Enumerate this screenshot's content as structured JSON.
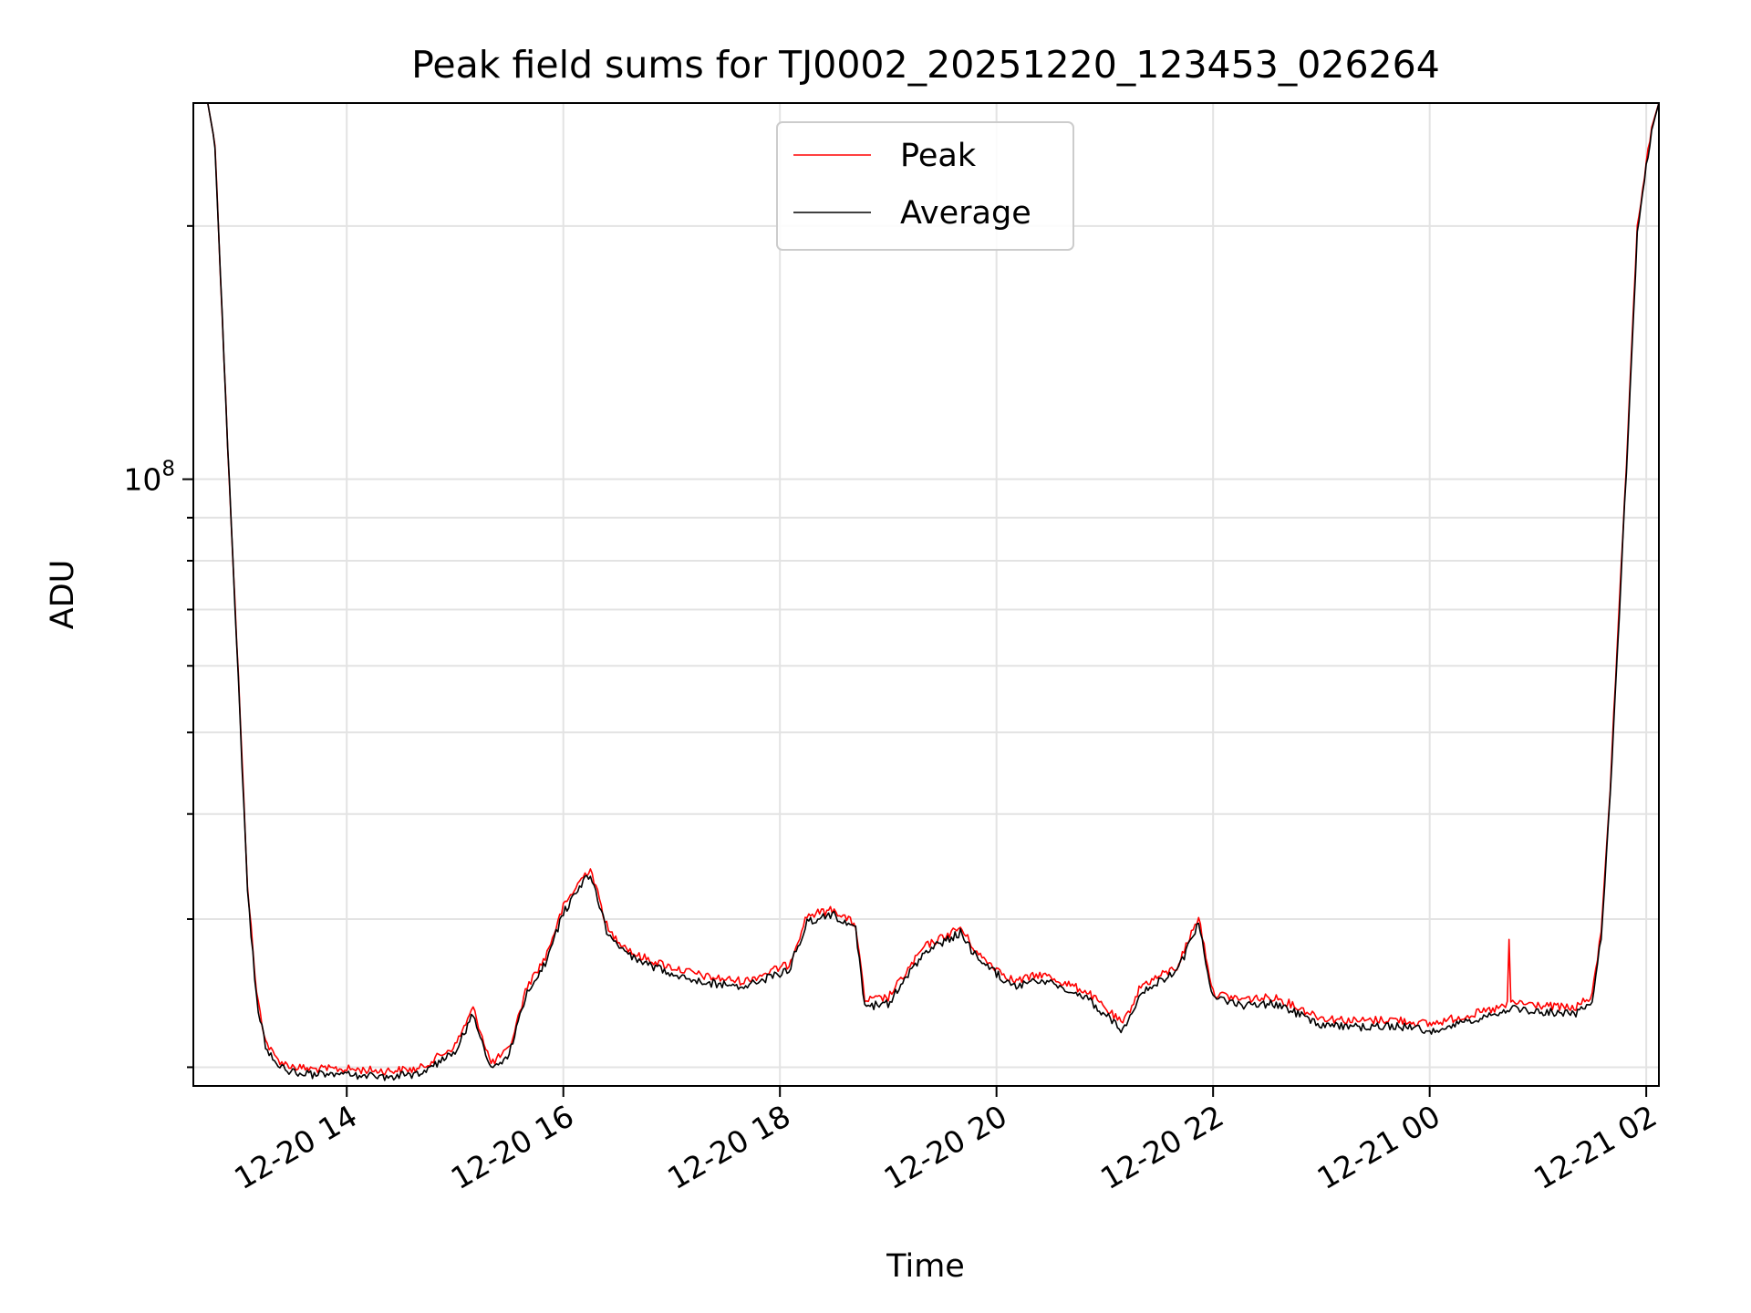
{
  "chart_data": {
    "type": "line",
    "title": "Peak field sums for TJ0002_20251220_123453_026264",
    "xlabel": "Time",
    "ylabel": "ADU",
    "y_scale": "log",
    "y_tick_labels": [
      {
        "value": 100000000,
        "label": "10",
        "exp": "8"
      }
    ],
    "xlim": [
      "2025-12-20 12:35",
      "2025-12-21 02:07"
    ],
    "ylim": [
      19000000,
      280000000
    ],
    "x_ticks": [
      {
        "t": "2025-12-20 14:00",
        "label": "12-20 14"
      },
      {
        "t": "2025-12-20 16:00",
        "label": "12-20 16"
      },
      {
        "t": "2025-12-20 18:00",
        "label": "12-20 18"
      },
      {
        "t": "2025-12-20 20:00",
        "label": "12-20 20"
      },
      {
        "t": "2025-12-20 22:00",
        "label": "12-20 22"
      },
      {
        "t": "2025-12-21 00:00",
        "label": "12-21 00"
      },
      {
        "t": "2025-12-21 02:00",
        "label": "12-21 02"
      }
    ],
    "grid": true,
    "legend": {
      "position": "top-center"
    },
    "series": [
      {
        "name": "Peak",
        "color": "#ff0000",
        "x": [
          "2025-12-20 12:35",
          "2025-12-20 12:43",
          "2025-12-20 12:47",
          "2025-12-20 12:54",
          "2025-12-20 13:00",
          "2025-12-20 13:05",
          "2025-12-20 13:10",
          "2025-12-20 13:15",
          "2025-12-20 13:20",
          "2025-12-20 13:25",
          "2025-12-20 13:32",
          "2025-12-20 13:40",
          "2025-12-20 14:00",
          "2025-12-20 14:20",
          "2025-12-20 14:40",
          "2025-12-20 15:00",
          "2025-12-20 15:10",
          "2025-12-20 15:20",
          "2025-12-20 15:30",
          "2025-12-20 15:40",
          "2025-12-20 15:50",
          "2025-12-20 16:00",
          "2025-12-20 16:10",
          "2025-12-20 16:15",
          "2025-12-20 16:25",
          "2025-12-20 16:40",
          "2025-12-20 17:00",
          "2025-12-20 17:20",
          "2025-12-20 17:40",
          "2025-12-20 18:05",
          "2025-12-20 18:15",
          "2025-12-20 18:30",
          "2025-12-20 18:42",
          "2025-12-20 18:47",
          "2025-12-20 19:00",
          "2025-12-20 19:20",
          "2025-12-20 19:40",
          "2025-12-20 19:50",
          "2025-12-20 20:10",
          "2025-12-20 20:25",
          "2025-12-20 20:50",
          "2025-12-20 21:10",
          "2025-12-20 21:20",
          "2025-12-20 21:40",
          "2025-12-20 21:52",
          "2025-12-20 22:00",
          "2025-12-20 22:15",
          "2025-12-20 22:35",
          "2025-12-20 23:00",
          "2025-12-20 23:20",
          "2025-12-20 23:40",
          "2025-12-21 00:00",
          "2025-12-21 00:15",
          "2025-12-21 00:35",
          "2025-12-21 00:43",
          "2025-12-21 00:44",
          "2025-12-21 00:45",
          "2025-12-21 01:00",
          "2025-12-21 01:20",
          "2025-12-21 01:30",
          "2025-12-21 01:35",
          "2025-12-21 01:40",
          "2025-12-21 01:45",
          "2025-12-21 01:50",
          "2025-12-21 01:55",
          "2025-12-21 02:03",
          "2025-12-21 02:07"
        ],
        "y": [
          280000000,
          280000000,
          250000000,
          110000000,
          58000000,
          33000000,
          24500000,
          21500000,
          20600000,
          20200000,
          20000000,
          19900000,
          19900000,
          19800000,
          19900000,
          21200000,
          23500000,
          20200000,
          21000000,
          25000000,
          27000000,
          31000000,
          33500000,
          34500000,
          29000000,
          27200000,
          26300000,
          25600000,
          25300000,
          26500000,
          30300000,
          30800000,
          29500000,
          24000000,
          24200000,
          27800000,
          29300000,
          27200000,
          25300000,
          25800000,
          24600000,
          22500000,
          25000000,
          26300000,
          30200000,
          24500000,
          24100000,
          24200000,
          22900000,
          22700000,
          22800000,
          22500000,
          22900000,
          23400000,
          23700000,
          28200000,
          23900000,
          23700000,
          23500000,
          24300000,
          29000000,
          43000000,
          70000000,
          115000000,
          200000000,
          262000000,
          280000000
        ]
      },
      {
        "name": "Average",
        "color": "#000000",
        "x": [
          "2025-12-20 12:35",
          "2025-12-20 12:43",
          "2025-12-20 12:47",
          "2025-12-20 12:54",
          "2025-12-20 13:00",
          "2025-12-20 13:05",
          "2025-12-20 13:10",
          "2025-12-20 13:15",
          "2025-12-20 13:20",
          "2025-12-20 13:25",
          "2025-12-20 13:32",
          "2025-12-20 13:40",
          "2025-12-20 14:00",
          "2025-12-20 14:20",
          "2025-12-20 14:40",
          "2025-12-20 15:00",
          "2025-12-20 15:10",
          "2025-12-20 15:20",
          "2025-12-20 15:30",
          "2025-12-20 15:40",
          "2025-12-20 15:50",
          "2025-12-20 16:00",
          "2025-12-20 16:10",
          "2025-12-20 16:15",
          "2025-12-20 16:25",
          "2025-12-20 16:40",
          "2025-12-20 17:00",
          "2025-12-20 17:20",
          "2025-12-20 17:40",
          "2025-12-20 18:05",
          "2025-12-20 18:15",
          "2025-12-20 18:30",
          "2025-12-20 18:42",
          "2025-12-20 18:47",
          "2025-12-20 19:00",
          "2025-12-20 19:20",
          "2025-12-20 19:40",
          "2025-12-20 19:50",
          "2025-12-20 20:10",
          "2025-12-20 20:25",
          "2025-12-20 20:50",
          "2025-12-20 21:10",
          "2025-12-20 21:20",
          "2025-12-20 21:40",
          "2025-12-20 21:52",
          "2025-12-20 22:00",
          "2025-12-20 22:15",
          "2025-12-20 22:35",
          "2025-12-20 23:00",
          "2025-12-20 23:20",
          "2025-12-20 23:40",
          "2025-12-21 00:00",
          "2025-12-21 00:15",
          "2025-12-21 00:35",
          "2025-12-21 00:43",
          "2025-12-21 00:44",
          "2025-12-21 00:45",
          "2025-12-21 01:00",
          "2025-12-21 01:20",
          "2025-12-21 01:30",
          "2025-12-21 01:35",
          "2025-12-21 01:40",
          "2025-12-21 01:45",
          "2025-12-21 01:50",
          "2025-12-21 01:55",
          "2025-12-21 02:03",
          "2025-12-21 02:07"
        ],
        "y": [
          280000000,
          280000000,
          250000000,
          110000000,
          57000000,
          32500000,
          24100000,
          21200000,
          20300000,
          19900000,
          19700000,
          19600000,
          19600000,
          19500000,
          19600000,
          20900000,
          23100000,
          19900000,
          20700000,
          24600000,
          26600000,
          30500000,
          33000000,
          34000000,
          28600000,
          26800000,
          25900000,
          25200000,
          24900000,
          26100000,
          29800000,
          30300000,
          29100000,
          23600000,
          23800000,
          27400000,
          28900000,
          26800000,
          24900000,
          25400000,
          24200000,
          22100000,
          24600000,
          25900000,
          29700000,
          24100000,
          23700000,
          23800000,
          22500000,
          22300000,
          22400000,
          22100000,
          22500000,
          23000000,
          23300000,
          23300000,
          23500000,
          23300000,
          23100000,
          23900000,
          28500000,
          42000000,
          69000000,
          113000000,
          197000000,
          260000000,
          280000000
        ]
      }
    ]
  }
}
